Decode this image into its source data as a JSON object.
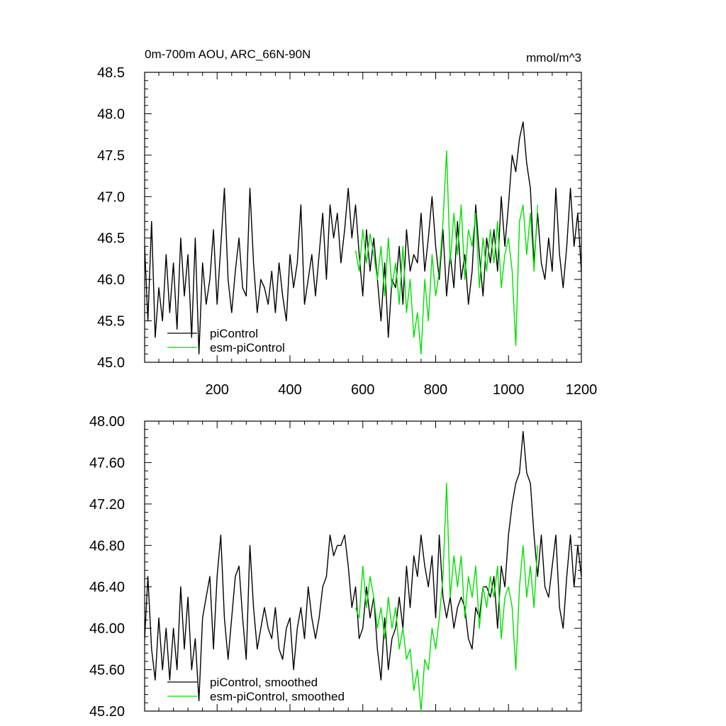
{
  "colors": {
    "piControl": "#000000",
    "esm_piControl": "#00e000"
  },
  "chart_data": [
    {
      "type": "line",
      "title": "0m-700m AOU, ARC_66N-90N",
      "units": "mmol/m^3",
      "xlim": [
        1,
        1200
      ],
      "ylim": [
        45.0,
        48.5
      ],
      "x_ticks": [
        200,
        400,
        600,
        800,
        1000,
        1200
      ],
      "y_ticks": [
        "45.0",
        "45.5",
        "46.0",
        "46.5",
        "47.0",
        "47.5",
        "48.0",
        "48.5"
      ],
      "series": [
        {
          "name": "piControl",
          "x": [
            1,
            10,
            20,
            30,
            40,
            50,
            60,
            70,
            80,
            90,
            100,
            110,
            120,
            130,
            140,
            150,
            160,
            170,
            180,
            190,
            200,
            210,
            220,
            230,
            240,
            250,
            260,
            270,
            280,
            290,
            300,
            310,
            320,
            330,
            340,
            350,
            360,
            370,
            380,
            390,
            400,
            410,
            420,
            430,
            440,
            450,
            460,
            470,
            480,
            490,
            500,
            510,
            520,
            530,
            540,
            550,
            560,
            570,
            580,
            590,
            600,
            610,
            620,
            630,
            640,
            650,
            660,
            670,
            680,
            690,
            700,
            710,
            720,
            730,
            740,
            750,
            760,
            770,
            780,
            790,
            800,
            810,
            820,
            830,
            840,
            850,
            860,
            870,
            880,
            890,
            900,
            910,
            920,
            930,
            940,
            950,
            960,
            970,
            980,
            990,
            1000,
            1010,
            1020,
            1030,
            1040,
            1050,
            1060,
            1070,
            1080,
            1090,
            1100,
            1110,
            1120,
            1130,
            1140,
            1150,
            1160,
            1170,
            1180,
            1190,
            1200
          ],
          "values": [
            46.4,
            45.5,
            46.7,
            45.3,
            45.9,
            45.5,
            46.3,
            45.6,
            46.2,
            45.4,
            46.5,
            45.8,
            46.3,
            45.3,
            46.5,
            45.1,
            46.2,
            45.7,
            46.0,
            46.6,
            45.7,
            46.4,
            47.1,
            46.0,
            45.6,
            46.1,
            46.5,
            45.9,
            45.8,
            47.1,
            46.2,
            45.6,
            46.0,
            45.9,
            45.7,
            46.1,
            45.6,
            46.2,
            45.8,
            45.5,
            46.3,
            45.9,
            46.2,
            46.9,
            45.7,
            46.0,
            46.3,
            45.8,
            46.3,
            46.8,
            46.0,
            46.9,
            46.5,
            46.8,
            46.2,
            46.6,
            47.1,
            46.5,
            46.9,
            46.3,
            45.8,
            46.6,
            46.1,
            46.5,
            46.0,
            45.5,
            46.2,
            45.3,
            46.0,
            45.9,
            46.4,
            45.7,
            46.6,
            46.1,
            46.3,
            46.2,
            46.8,
            46.1,
            46.5,
            47.0,
            46.4,
            46.0,
            46.6,
            45.8,
            46.3,
            45.9,
            46.7,
            46.0,
            46.3,
            45.7,
            46.1,
            46.9,
            46.3,
            45.8,
            46.5,
            46.2,
            46.6,
            46.1,
            47.0,
            46.4,
            46.9,
            47.5,
            47.3,
            47.7,
            47.9,
            47.4,
            47.1,
            46.2,
            46.8,
            46.2,
            46.0,
            46.5,
            46.1,
            47.1,
            46.3,
            45.9,
            46.4,
            47.1,
            46.4,
            46.8,
            46.1
          ]
        },
        {
          "name": "esm-piControl",
          "x": [
            580,
            590,
            600,
            610,
            620,
            630,
            640,
            650,
            660,
            670,
            680,
            690,
            700,
            710,
            720,
            730,
            740,
            750,
            760,
            770,
            780,
            790,
            800,
            810,
            820,
            830,
            840,
            850,
            860,
            870,
            880,
            890,
            900,
            910,
            920,
            930,
            940,
            950,
            960,
            970,
            980,
            990,
            1000,
            1010,
            1020,
            1030,
            1040,
            1050,
            1060,
            1070,
            1080
          ],
          "values": [
            46.35,
            46.1,
            46.6,
            46.2,
            46.55,
            46.3,
            46.0,
            46.4,
            45.8,
            46.5,
            45.9,
            46.2,
            45.7,
            46.4,
            45.6,
            46.0,
            45.3,
            45.6,
            45.1,
            46.0,
            45.5,
            46.3,
            45.8,
            46.1,
            46.7,
            47.55,
            46.2,
            46.8,
            46.3,
            46.9,
            46.0,
            46.6,
            46.4,
            46.8,
            45.9,
            46.5,
            46.1,
            46.6,
            46.2,
            46.7,
            45.9,
            46.3,
            46.5,
            46.1,
            45.2,
            46.7,
            46.9,
            46.3,
            46.8,
            46.1,
            46.9
          ]
        }
      ],
      "legend": [
        "piControl",
        "esm-piControl"
      ],
      "legend_position": "bottom-left"
    },
    {
      "type": "line",
      "xlim": [
        1,
        1200
      ],
      "ylim": [
        45.2,
        48.0
      ],
      "y_ticks": [
        "45.20",
        "45.60",
        "46.00",
        "46.40",
        "46.80",
        "47.20",
        "47.60",
        "48.00"
      ],
      "series": [
        {
          "name": "piControl, smoothed",
          "x": [
            1,
            10,
            20,
            30,
            40,
            50,
            60,
            70,
            80,
            90,
            100,
            110,
            120,
            130,
            140,
            150,
            160,
            170,
            180,
            190,
            200,
            210,
            220,
            230,
            240,
            250,
            260,
            270,
            280,
            290,
            300,
            310,
            320,
            330,
            340,
            350,
            360,
            370,
            380,
            390,
            400,
            410,
            420,
            430,
            440,
            450,
            460,
            470,
            480,
            490,
            500,
            510,
            520,
            530,
            540,
            550,
            560,
            570,
            580,
            590,
            600,
            610,
            620,
            630,
            640,
            650,
            660,
            670,
            680,
            690,
            700,
            710,
            720,
            730,
            740,
            750,
            760,
            770,
            780,
            790,
            800,
            810,
            820,
            830,
            840,
            850,
            860,
            870,
            880,
            890,
            900,
            910,
            920,
            930,
            940,
            950,
            960,
            970,
            980,
            990,
            1000,
            1010,
            1020,
            1030,
            1040,
            1050,
            1060,
            1070,
            1080,
            1090,
            1100,
            1110,
            1120,
            1130,
            1140,
            1150,
            1160,
            1170,
            1180,
            1190,
            1200
          ],
          "values": [
            45.9,
            46.5,
            45.8,
            45.5,
            46.1,
            45.6,
            46.0,
            45.5,
            46.0,
            45.6,
            46.4,
            45.8,
            46.3,
            45.6,
            45.9,
            45.3,
            46.1,
            46.3,
            46.5,
            45.8,
            46.5,
            46.9,
            46.1,
            45.7,
            46.1,
            46.5,
            46.6,
            46.1,
            45.7,
            46.8,
            46.2,
            45.8,
            46.0,
            46.2,
            46.0,
            45.9,
            46.2,
            45.8,
            45.7,
            46.0,
            46.1,
            45.6,
            46.0,
            46.2,
            45.9,
            46.4,
            46.1,
            45.9,
            46.1,
            46.4,
            46.5,
            46.9,
            46.7,
            46.8,
            46.8,
            46.9,
            46.6,
            46.2,
            46.4,
            45.9,
            46.0,
            46.4,
            46.1,
            46.3,
            45.8,
            45.5,
            46.1,
            45.6,
            45.9,
            46.0,
            46.3,
            46.0,
            46.6,
            46.2,
            46.7,
            46.5,
            46.9,
            46.6,
            46.4,
            46.7,
            46.1,
            46.9,
            46.3,
            46.1,
            46.3,
            46.0,
            46.2,
            46.3,
            46.2,
            45.9,
            45.8,
            46.2,
            46.1,
            46.4,
            46.4,
            46.3,
            46.5,
            46.0,
            46.6,
            46.4,
            46.9,
            47.2,
            47.4,
            47.5,
            47.9,
            47.5,
            47.4,
            46.9,
            46.5,
            46.9,
            46.4,
            46.3,
            46.6,
            46.9,
            46.2,
            46.0,
            46.5,
            46.9,
            46.4,
            46.8,
            46.5
          ]
        },
        {
          "name": "esm-piControl, smoothed",
          "x": [
            580,
            590,
            600,
            610,
            620,
            630,
            640,
            650,
            660,
            670,
            680,
            690,
            700,
            710,
            720,
            730,
            740,
            750,
            760,
            770,
            780,
            790,
            800,
            810,
            820,
            830,
            840,
            850,
            860,
            870,
            880,
            890,
            900,
            910,
            920,
            930,
            940,
            950,
            960,
            970,
            980,
            990,
            1000,
            1010,
            1020,
            1030,
            1040,
            1050,
            1060,
            1070,
            1080
          ],
          "values": [
            46.2,
            46.1,
            46.6,
            46.2,
            46.5,
            46.3,
            46.0,
            46.2,
            45.9,
            46.3,
            46.0,
            46.2,
            45.8,
            46.0,
            45.7,
            45.8,
            45.4,
            45.6,
            45.2,
            45.7,
            45.6,
            46.0,
            45.8,
            46.1,
            46.5,
            47.4,
            46.3,
            46.7,
            46.4,
            46.7,
            46.1,
            46.5,
            46.3,
            46.6,
            46.0,
            46.4,
            46.2,
            46.5,
            46.3,
            46.6,
            45.9,
            46.3,
            46.4,
            46.2,
            45.6,
            46.4,
            46.8,
            46.3,
            46.6,
            46.2,
            46.8
          ]
        }
      ],
      "legend": [
        "piControl, smoothed",
        "esm-piControl, smoothed"
      ],
      "legend_position": "bottom-left"
    }
  ]
}
